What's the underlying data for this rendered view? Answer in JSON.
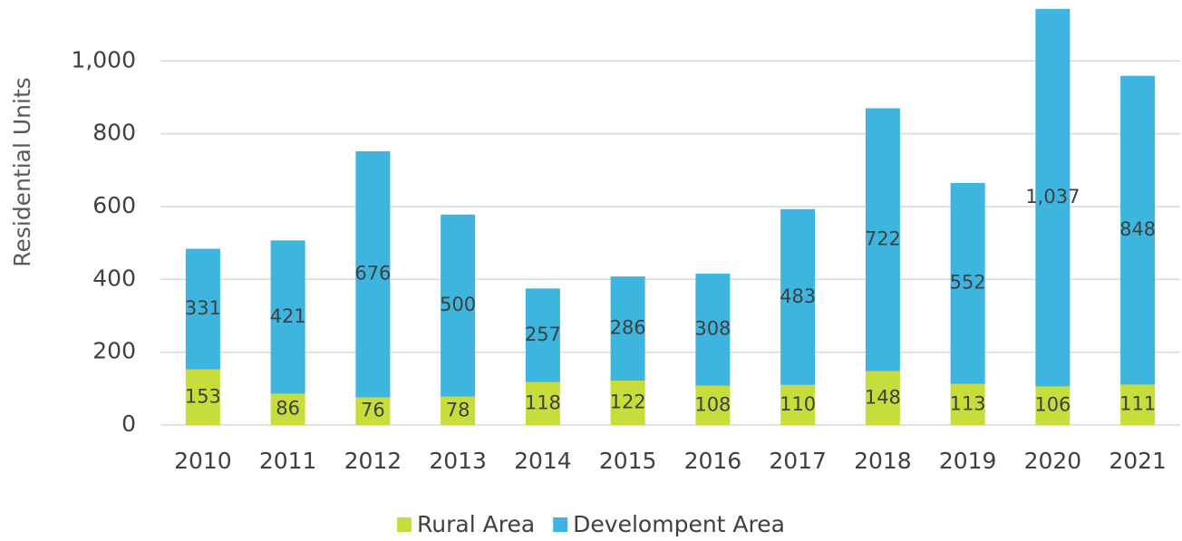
{
  "chart_data": {
    "type": "stacked_bar",
    "y_label": "Residential Units",
    "categories": [
      "2010",
      "2011",
      "2012",
      "2013",
      "2014",
      "2015",
      "2016",
      "2017",
      "2018",
      "2019",
      "2020",
      "2021"
    ],
    "series": [
      {
        "name": "Rural Area",
        "color": "#c8dc3c",
        "values": [
          153,
          86,
          76,
          78,
          118,
          122,
          108,
          110,
          148,
          113,
          106,
          111
        ]
      },
      {
        "name": "Develompent Area",
        "color": "#3db5df",
        "values": [
          331,
          421,
          676,
          500,
          257,
          286,
          308,
          483,
          722,
          552,
          1037,
          848
        ],
        "value_labels": [
          "331",
          "421",
          "676",
          "500",
          "257",
          "286",
          "308",
          "483",
          "722",
          "552",
          "1,037",
          "848"
        ]
      }
    ],
    "ylim": [
      0,
      1150
    ],
    "yticks": [
      0,
      200,
      400,
      600,
      800,
      {
        "value": 1000,
        "label": "1,000"
      }
    ],
    "grid": true,
    "legend": "bottom"
  }
}
